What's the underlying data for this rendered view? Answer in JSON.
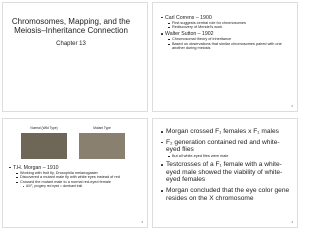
{
  "slides": [
    {
      "title": "Chromosomes, Mapping, and the Meiosis–Inheritance Connection",
      "subtitle": "Chapter 13"
    },
    {
      "bullets": [
        {
          "text": "Carl Correns – 1900",
          "level": 0
        },
        {
          "text": "First suggests central role for chromosomes",
          "level": 1
        },
        {
          "text": "Rediscovery of Mendel's work",
          "level": 1
        },
        {
          "text": "Walter Sutton – 1902",
          "level": 0
        },
        {
          "text": "Chromosomal theory of inheritance",
          "level": 1
        },
        {
          "text": "Based on observations that similar chromosomes paired with one another during meiosis",
          "level": 1
        }
      ],
      "number": "2"
    },
    {
      "images": [
        "Normal (Wild Type)",
        "Mutant Type"
      ],
      "bullets": [
        {
          "text": "T.H. Morgan – 1910",
          "level": 0
        },
        {
          "text": "Working with fruit fly, Drosophila melanogaster",
          "level": 1
        },
        {
          "text": "Discovered a mutant male fly with white eyes instead of red",
          "level": 1
        },
        {
          "text": "Crossed the mutant male to a normal red-eyed female",
          "level": 1
        },
        {
          "text": "All F₁ progeny red eyed = dominant trait",
          "level": 2
        }
      ],
      "number": "3"
    },
    {
      "bullets": [
        {
          "text": "Morgan crossed F₁ females x F₁ males",
          "level": 0
        },
        {
          "text": "F₂ generation contained red and white-eyed flies",
          "level": 0
        },
        {
          "text": "But all white-eyed flies were male",
          "level": 1
        },
        {
          "text": "Testcrosses of a F₁ female with a white-eyed male showed the viability of white-eyed females",
          "level": 0
        },
        {
          "text": "Morgan concluded that the eye color gene resides on the X chromosome",
          "level": 0
        }
      ],
      "number": "4"
    }
  ]
}
